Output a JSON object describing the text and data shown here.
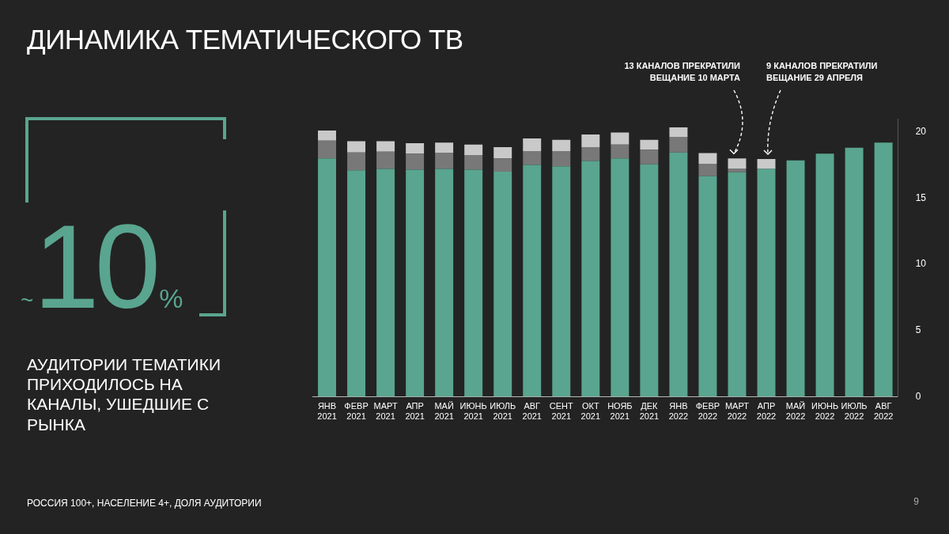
{
  "chart_data": {
    "type": "bar",
    "title": "ДИНАМИКА ТЕМАТИЧЕСКОГО ТВ",
    "categories": [
      "ЯНВ 2021",
      "ФЕВР 2021",
      "МАРТ 2021",
      "АПР 2021",
      "МАЙ 2021",
      "ИЮНЬ 2021",
      "ИЮЛЬ 2021",
      "АВГ 2021",
      "СЕНТ 2021",
      "ОКТ 2021",
      "НОЯБ 2021",
      "ДЕК 2021",
      "ЯНВ 2022",
      "ФЕВР 2022",
      "МАРТ 2022",
      "АПР 2022",
      "МАЙ 2022",
      "ИЮНЬ 2022",
      "ИЮЛЬ 2022",
      "АВГ 2022"
    ],
    "series": [
      {
        "color": "#5aa58f",
        "values": [
          18.0,
          17.1,
          17.2,
          17.15,
          17.2,
          17.15,
          17.0,
          17.5,
          17.4,
          17.8,
          18.0,
          17.55,
          18.45,
          16.65,
          16.95,
          17.2,
          17.85,
          18.35,
          18.8,
          19.2
        ]
      },
      {
        "color": "#787878",
        "values": [
          1.35,
          1.35,
          1.3,
          1.2,
          1.2,
          1.1,
          1.0,
          1.05,
          1.15,
          1.05,
          1.05,
          1.1,
          1.15,
          0.95,
          0.25,
          null,
          null,
          null,
          null,
          null
        ]
      },
      {
        "color": "#c9c9c9",
        "values": [
          0.75,
          0.85,
          0.8,
          0.8,
          0.8,
          0.8,
          0.85,
          0.95,
          0.85,
          0.95,
          0.9,
          0.75,
          0.75,
          0.8,
          0.8,
          0.75,
          null,
          null,
          null,
          null
        ]
      }
    ],
    "stacked": true,
    "ylim": [
      0,
      21
    ],
    "yticks": [
      0,
      5,
      10,
      15,
      20
    ],
    "grid": false,
    "annotations": [
      {
        "text": "13 КАНАЛОВ ПРЕКРАТИЛИ\nВЕЩАНИЕ 10 МАРТА",
        "x": "МАРТ 2022",
        "y": 18.0
      },
      {
        "text": "9 КАНАЛОВ ПРЕКРАТИЛИ\nВЕЩАНИЕ 29 АПРЕЛЯ",
        "x": "АПР 2022",
        "y": 17.95
      },
      "~10%",
      "АУДИТОРИИ ТЕМАТИКИ ПРИХОДИЛОСЬ НА КАНАЛЫ, УШЕДШИЕ С РЫНКА",
      "РОССИЯ 100+, НАСЕЛЕНИЕ 4+, ДОЛЯ АУДИТОРИИ",
      "9"
    ]
  }
}
